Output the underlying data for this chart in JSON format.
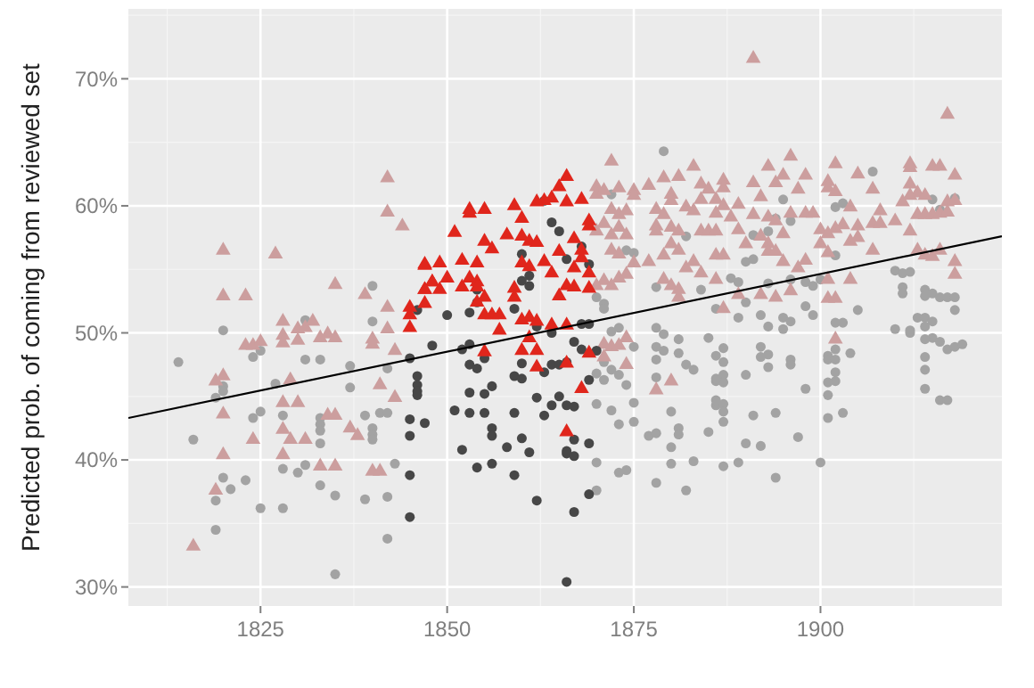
{
  "chart_data": {
    "type": "scatter",
    "ylabel": "Predicted prob. of coming from reviewed set",
    "xlim": [
      1807.3,
      1924.3
    ],
    "ylim": [
      28.5,
      75.5
    ],
    "xticks": [
      1825,
      1850,
      1875,
      1900
    ],
    "yticks": [
      {
        "value": 30,
        "label": "30%"
      },
      {
        "value": 40,
        "label": "40%"
      },
      {
        "value": 50,
        "label": "50%"
      },
      {
        "value": 60,
        "label": "60%"
      },
      {
        "value": 70,
        "label": "70%"
      }
    ],
    "grid": true,
    "series": [
      {
        "marker": "circle",
        "color": "#a3a3a3",
        "x": [
          1820,
          1831,
          1840,
          1840,
          1825,
          1814,
          1824,
          1831,
          1833,
          1837,
          1842,
          1820,
          1820,
          1827,
          1837,
          1819,
          1824,
          1825,
          1828,
          1833,
          1833,
          1833,
          1833,
          1839,
          1841,
          1842,
          1840,
          1840,
          1840,
          1816,
          1820,
          1823,
          1821,
          1819,
          1825,
          1828,
          1828,
          1830,
          1831,
          1833,
          1835,
          1839,
          1842,
          1843,
          1842,
          1819,
          1835,
          1879,
          1872,
          1874,
          1875,
          1870,
          1871,
          1871,
          1878,
          1882,
          1884,
          1886,
          1872,
          1873,
          1878,
          1879,
          1875,
          1878,
          1881,
          1885,
          1879,
          1870,
          1871,
          1871,
          1872,
          1873,
          1874,
          1870,
          1872,
          1875,
          1875,
          1873,
          1877,
          1878,
          1878,
          1878,
          1881,
          1882,
          1883,
          1886,
          1881,
          1881,
          1880,
          1885,
          1880,
          1878,
          1882,
          1880,
          1883,
          1870,
          1873,
          1874,
          1870,
          1886,
          1907,
          1895,
          1902,
          1903,
          1915,
          1916,
          1918,
          1891,
          1890,
          1891,
          1893,
          1894,
          1896,
          1902,
          1888,
          1889,
          1893,
          1896,
          1898,
          1899,
          1900,
          1910,
          1911,
          1912,
          1911,
          1911,
          1914,
          1914,
          1915,
          1916,
          1917,
          1918,
          1890,
          1892,
          1895,
          1896,
          1899,
          1898,
          1905,
          1902,
          1903,
          1889,
          1893,
          1895,
          1910,
          1912,
          1913,
          1914,
          1915,
          1914,
          1912,
          1918,
          1917,
          1918,
          1919,
          1915,
          1916,
          1887,
          1892,
          1893,
          1902,
          1887,
          1887,
          1887,
          1886,
          1886,
          1886,
          1887,
          1887,
          1887,
          1890,
          1892,
          1893,
          1896,
          1896,
          1891,
          1894,
          1898,
          1901,
          1901,
          1902,
          1902,
          1902,
          1901,
          1901,
          1901,
          1903,
          1904,
          1890,
          1892,
          1897,
          1887,
          1889,
          1894,
          1900,
          1914,
          1914,
          1914,
          1914,
          1916,
          1917
        ],
        "values": [
          50.2,
          51.0,
          53.7,
          50.9,
          48.6,
          47.7,
          48.1,
          47.9,
          47.9,
          47.4,
          47.2,
          45.8,
          45.4,
          46.0,
          45.7,
          44.9,
          43.3,
          43.8,
          43.5,
          43.3,
          42.8,
          42.3,
          41.3,
          43.5,
          43.7,
          43.7,
          42.5,
          42.0,
          41.6,
          41.6,
          38.6,
          38.4,
          37.7,
          36.8,
          36.2,
          36.2,
          39.3,
          39.0,
          39.6,
          38.0,
          37.2,
          36.9,
          37.1,
          39.7,
          33.8,
          34.5,
          31.0,
          64.3,
          60.9,
          56.5,
          56.3,
          52.8,
          52.3,
          51.9,
          53.6,
          57.6,
          53.4,
          51.9,
          50.1,
          50.4,
          50.4,
          49.9,
          48.9,
          48.9,
          49.5,
          49.6,
          48.6,
          46.8,
          47.7,
          46.3,
          47.1,
          46.7,
          45.9,
          44.4,
          43.9,
          44.5,
          43.0,
          42.8,
          41.9,
          42.1,
          47.9,
          46.5,
          48.4,
          47.5,
          47.1,
          46.2,
          42.5,
          42.0,
          43.8,
          42.2,
          41.0,
          38.2,
          37.6,
          39.7,
          39.9,
          39.8,
          39.0,
          39.2,
          37.6,
          44.3,
          62.7,
          60.5,
          59.9,
          60.2,
          60.5,
          59.7,
          60.6,
          57.7,
          55.6,
          55.8,
          58.0,
          59.0,
          58.8,
          56.1,
          54.3,
          54.0,
          53.9,
          54.2,
          54.0,
          53.7,
          54.2,
          54.9,
          54.7,
          54.8,
          53.6,
          53.1,
          53.4,
          52.9,
          53.1,
          52.8,
          52.8,
          52.8,
          52.4,
          51.4,
          51.2,
          50.9,
          51.4,
          52.1,
          51.8,
          50.8,
          50.8,
          51.2,
          50.5,
          50.3,
          50.3,
          50.2,
          51.2,
          51.2,
          50.9,
          50.5,
          50.0,
          51.8,
          48.7,
          48.9,
          49.1,
          49.6,
          49.3,
          48.8,
          48.9,
          48.3,
          48.7,
          47.7,
          46.7,
          46.1,
          48.2,
          46.4,
          44.7,
          44.4,
          43.8,
          43.0,
          46.7,
          48.1,
          47.3,
          47.9,
          47.5,
          43.5,
          43.7,
          45.6,
          48.2,
          47.9,
          47.9,
          46.9,
          46.2,
          46.1,
          45.1,
          43.3,
          43.7,
          48.4,
          41.3,
          41.1,
          41.8,
          39.5,
          39.8,
          38.6,
          39.8,
          49.5,
          48.1,
          47.1,
          45.6,
          44.7,
          44.7
        ]
      },
      {
        "marker": "triangle",
        "color": "#cc9e9e",
        "x": [
          1842,
          1842,
          1844,
          1820,
          1827,
          1820,
          1823,
          1835,
          1839,
          1842,
          1842,
          1828,
          1828,
          1830,
          1831,
          1832,
          1833,
          1834,
          1835,
          1840,
          1840,
          1823,
          1824,
          1825,
          1828,
          1830,
          1843,
          1819,
          1820,
          1829,
          1820,
          1828,
          1830,
          1841,
          1843,
          1834,
          1835,
          1837,
          1838,
          1828,
          1829,
          1831,
          1824,
          1820,
          1828,
          1833,
          1835,
          1840,
          1841,
          1819,
          1816,
          1872,
          1870,
          1870,
          1871,
          1873,
          1875,
          1875,
          1877,
          1879,
          1881,
          1883,
          1884,
          1885,
          1886,
          1872,
          1873,
          1874,
          1878,
          1879,
          1880,
          1880,
          1882,
          1883,
          1884,
          1886,
          1871,
          1873,
          1870,
          1872,
          1874,
          1878,
          1878,
          1880,
          1881,
          1884,
          1885,
          1886,
          1872,
          1873,
          1875,
          1877,
          1879,
          1880,
          1881,
          1882,
          1883,
          1886,
          1871,
          1872,
          1873,
          1874,
          1870,
          1879,
          1880,
          1881,
          1884,
          1886,
          1881,
          1871,
          1872,
          1874,
          1873,
          1874,
          1878,
          1880,
          1871,
          1891,
          1917,
          1896,
          1893,
          1902,
          1905,
          1912,
          1912,
          1915,
          1916,
          1918,
          1898,
          1895,
          1894,
          1891,
          1901,
          1901,
          1902,
          1897,
          1892,
          1887,
          1887,
          1889,
          1887,
          1912,
          1913,
          1912,
          1914,
          1911,
          1907,
          1908,
          1907,
          1908,
          1910,
          1913,
          1914,
          1915,
          1916,
          1917,
          1918,
          1917,
          1888,
          1891,
          1893,
          1894,
          1896,
          1898,
          1899,
          1900,
          1902,
          1903,
          1904,
          1905,
          1889,
          1890,
          1892,
          1893,
          1893,
          1894,
          1895,
          1895,
          1897,
          1898,
          1900,
          1901,
          1901,
          1887,
          1904,
          1905,
          1907,
          1912,
          1913,
          1914,
          1915,
          1916,
          1918,
          1918,
          1889,
          1892,
          1894,
          1896,
          1901,
          1901,
          1902,
          1904,
          1902,
          1887
        ],
        "values": [
          62.2,
          59.5,
          58.4,
          56.5,
          56.2,
          52.9,
          52.9,
          53.8,
          53.0,
          52.0,
          50.3,
          50.9,
          49.8,
          50.3,
          50.4,
          50.9,
          49.6,
          49.9,
          49.6,
          49.5,
          49.1,
          49.0,
          49.0,
          49.3,
          49.2,
          49.4,
          48.6,
          46.2,
          46.6,
          46.3,
          43.6,
          44.5,
          44.5,
          45.9,
          44.9,
          43.5,
          43.5,
          42.5,
          41.9,
          42.4,
          41.6,
          41.6,
          41.6,
          40.4,
          40.4,
          39.5,
          39.5,
          39.1,
          39.1,
          37.6,
          33.2,
          63.5,
          61.5,
          60.9,
          61.2,
          61.4,
          61.2,
          60.8,
          61.6,
          62.2,
          62.3,
          63.1,
          61.7,
          61.3,
          60.5,
          59.7,
          59.3,
          59.6,
          59.7,
          59.3,
          60.9,
          60.4,
          59.9,
          59.6,
          60.5,
          59.4,
          58.6,
          58.3,
          58.0,
          57.7,
          57.7,
          58.4,
          58.0,
          58.3,
          58.0,
          58.0,
          58.0,
          58.0,
          56.5,
          56.2,
          55.5,
          55.6,
          56.1,
          57.0,
          56.5,
          55.1,
          55.6,
          56.1,
          54.1,
          53.7,
          54.3,
          54.6,
          53.7,
          54.2,
          53.7,
          53.4,
          54.7,
          54.2,
          52.8,
          49.1,
          48.9,
          49.6,
          49.0,
          47.5,
          45.5,
          46.2,
          48.1,
          71.6,
          67.2,
          63.9,
          63.1,
          63.3,
          62.5,
          63.3,
          63.0,
          63.1,
          63.1,
          62.4,
          62.4,
          62.4,
          61.8,
          61.8,
          61.9,
          61.4,
          61.1,
          61.3,
          60.7,
          62.0,
          61.4,
          60.1,
          60.0,
          61.7,
          61.0,
          60.8,
          60.8,
          60.3,
          61.3,
          59.6,
          58.6,
          58.6,
          58.8,
          59.3,
          59.3,
          59.3,
          59.4,
          60.3,
          60.4,
          59.5,
          59.1,
          59.3,
          59.1,
          58.8,
          59.4,
          59.4,
          59.4,
          58.1,
          58.2,
          58.5,
          59.9,
          58.4,
          58.1,
          57.0,
          57.6,
          57.0,
          56.4,
          56.4,
          57.8,
          55.6,
          55.1,
          55.7,
          57.0,
          57.8,
          56.3,
          56.1,
          57.2,
          57.5,
          56.5,
          58.0,
          56.5,
          56.1,
          56.0,
          56.5,
          55.6,
          54.6,
          53.0,
          53.0,
          52.8,
          53.3,
          54.2,
          52.7,
          52.7,
          54.2,
          49.5,
          51.9
        ]
      },
      {
        "marker": "circle",
        "color": "#474747",
        "x": [
          1846,
          1864,
          1860,
          1865,
          1866,
          1868,
          1869,
          1861,
          1860,
          1861,
          1854,
          1854,
          1850,
          1853,
          1859,
          1862,
          1864,
          1868,
          1869,
          1848,
          1853,
          1867,
          1868,
          1863,
          1845,
          1846,
          1846,
          1846,
          1846,
          1845,
          1847,
          1845,
          1845,
          1845,
          1852,
          1855,
          1853,
          1854,
          1860,
          1859,
          1860,
          1863,
          1864,
          1865,
          1866,
          1870,
          1869,
          1853,
          1855,
          1856,
          1851,
          1853,
          1855,
          1859,
          1862,
          1863,
          1864,
          1865,
          1866,
          1867,
          1856,
          1856,
          1858,
          1860,
          1861,
          1866,
          1866,
          1867,
          1867,
          1869,
          1852,
          1854,
          1856,
          1859,
          1862,
          1867,
          1869,
          1866
        ],
        "values": [
          51.8,
          58.7,
          56.2,
          58.0,
          55.8,
          56.8,
          55.4,
          54.5,
          54.1,
          53.7,
          53.4,
          52.4,
          51.4,
          51.6,
          51.9,
          50.5,
          50.0,
          50.7,
          50.7,
          49.0,
          49.1,
          49.3,
          48.7,
          60.4,
          48.0,
          46.6,
          45.9,
          45.4,
          45.1,
          43.2,
          42.9,
          41.9,
          38.8,
          35.5,
          48.7,
          48.0,
          47.5,
          47.2,
          47.6,
          46.6,
          46.4,
          46.9,
          47.5,
          47.5,
          47.7,
          48.6,
          46.3,
          45.3,
          45.2,
          45.8,
          43.9,
          43.7,
          43.7,
          43.7,
          44.9,
          43.5,
          44.3,
          45.0,
          44.3,
          44.2,
          42.5,
          41.9,
          41.0,
          41.7,
          40.6,
          40.7,
          40.5,
          40.3,
          41.6,
          41.3,
          40.8,
          39.4,
          39.7,
          38.8,
          36.8,
          35.9,
          37.3,
          30.4
        ]
      },
      {
        "marker": "triangle",
        "color": "#e0261c",
        "x": [
          1847,
          1847,
          1847,
          1845,
          1845,
          1845,
          1848,
          1866,
          1865,
          1864,
          1863,
          1862,
          1868,
          1866,
          1859,
          1855,
          1853,
          1853,
          1860,
          1869,
          1869,
          1851,
          1858,
          1860,
          1861,
          1862,
          1855,
          1856,
          1849,
          1847,
          1852,
          1854,
          1867,
          1868,
          1865,
          1868,
          1860,
          1863,
          1861,
          1864,
          1867,
          1869,
          1848,
          1850,
          1853,
          1854,
          1847,
          1849,
          1852,
          1854,
          1866,
          1867,
          1865,
          1869,
          1859,
          1859,
          1855,
          1854,
          1856,
          1857,
          1855,
          1861,
          1860,
          1862,
          1857,
          1866,
          1864,
          1861,
          1862,
          1860,
          1855,
          1862,
          1866,
          1869,
          1868,
          1866
        ],
        "values": [
          55.4,
          53.4,
          52.3,
          52.0,
          51.4,
          50.4,
          54.0,
          62.3,
          61.5,
          60.6,
          60.4,
          60.3,
          60.5,
          60.3,
          60.0,
          59.7,
          59.7,
          59.4,
          59.0,
          58.8,
          58.4,
          57.9,
          57.7,
          57.6,
          57.2,
          57.1,
          57.2,
          56.6,
          55.5,
          55.3,
          55.7,
          55.5,
          57.4,
          56.5,
          56.4,
          55.9,
          55.5,
          55.6,
          55.2,
          54.7,
          55.1,
          54.7,
          54.0,
          54.3,
          54.3,
          54.0,
          53.4,
          53.4,
          53.6,
          53.6,
          53.7,
          53.6,
          52.9,
          53.5,
          53.5,
          52.8,
          52.8,
          52.4,
          51.4,
          51.4,
          51.4,
          51.2,
          51.0,
          50.9,
          50.2,
          50.6,
          50.6,
          49.6,
          48.6,
          48.6,
          48.5,
          47.3,
          47.6,
          48.4,
          45.6,
          42.2
        ]
      },
      {
        "type": "line",
        "color": "#000000",
        "x": [
          1807.3,
          1924.3
        ],
        "values": [
          43.3,
          57.6
        ]
      }
    ]
  }
}
